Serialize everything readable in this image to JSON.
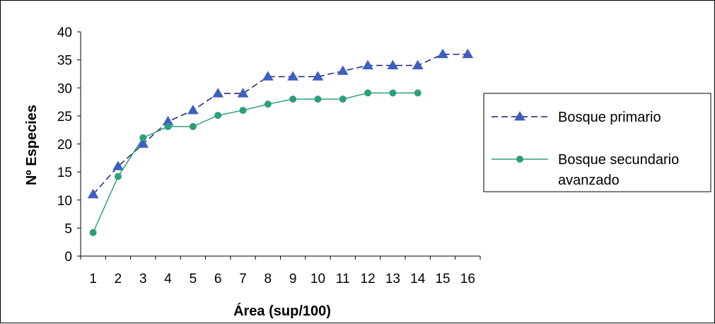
{
  "chart_data": {
    "type": "line",
    "xlabel": "Área (sup/100)",
    "ylabel": "Nº Especies",
    "categories": [
      "1",
      "2",
      "3",
      "4",
      "5",
      "6",
      "7",
      "8",
      "9",
      "10",
      "11",
      "12",
      "13",
      "14",
      "15",
      "16"
    ],
    "ylim": [
      0,
      40
    ],
    "yticks": [
      "0",
      "5",
      "10",
      "15",
      "20",
      "25",
      "30",
      "35",
      "40"
    ],
    "grid": false,
    "legend_position": "right",
    "series": [
      {
        "name": "Bosque primario",
        "color": "#1f1f7a",
        "marker_color": "#3f5fbf",
        "marker": "triangle",
        "line_style": "dashed",
        "values": [
          11,
          16,
          20,
          24,
          26,
          29,
          29,
          32,
          32,
          32,
          33,
          34,
          34,
          34,
          36,
          36
        ]
      },
      {
        "name": "Bosque secundario avanzado",
        "name_lines": [
          "Bosque secundario",
          "avanzado"
        ],
        "color": "#2e9e7e",
        "marker_color": "#2e9e7e",
        "marker": "circle",
        "line_style": "solid",
        "values": [
          4.2,
          14.2,
          21.1,
          23.1,
          23.1,
          25.1,
          26,
          27.1,
          28,
          28,
          28,
          29.1,
          29.1,
          29.1,
          null,
          null
        ]
      }
    ]
  }
}
